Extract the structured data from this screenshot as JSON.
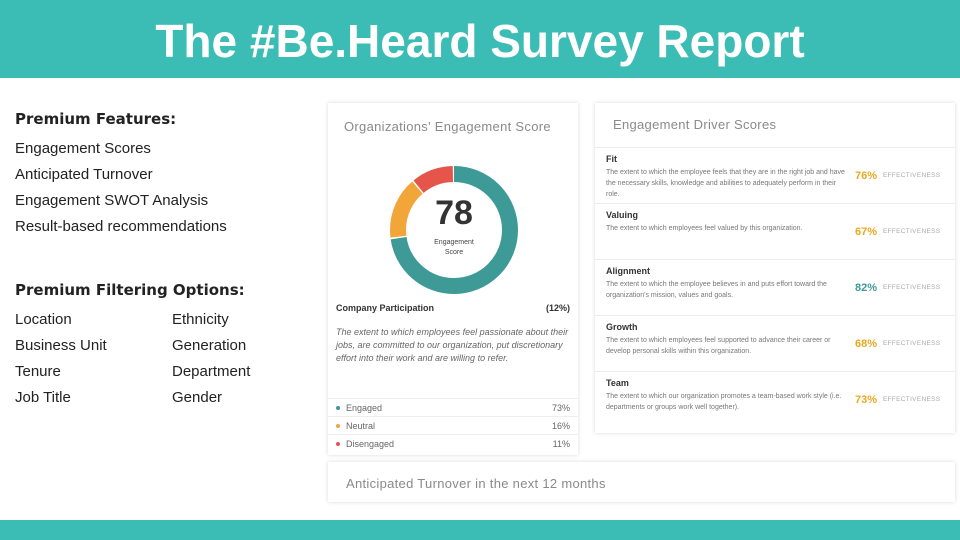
{
  "header": {
    "title": "The #Be.Heard Survey Report"
  },
  "left": {
    "premium_features_title": "Premium Features:",
    "features": [
      "Engagement Scores",
      "Anticipated Turnover",
      "Engagement SWOT Analysis",
      "Result-based recommendations"
    ],
    "filtering_title": "Premium Filtering Options:",
    "filters": [
      "Location",
      "Ethnicity",
      "Business Unit",
      "Generation",
      "Tenure",
      "Department",
      "Job Title",
      "Gender"
    ]
  },
  "engagement_panel": {
    "title": "Organizations' Engagement Score",
    "score": "78",
    "score_label_1": "Engagement",
    "score_label_2": "Score",
    "participation_label": "Company Participation",
    "participation_value": "(12%)",
    "description": "The extent to which employees feel passionate about their jobs, are committed to our organization, put discretionary effort into their work and are willing to refer.",
    "colors": {
      "engaged": "#3d9a96",
      "neutral": "#f2a63a",
      "disengaged": "#e6554a"
    },
    "stats": [
      {
        "name": "Engaged",
        "value": "73%"
      },
      {
        "name": "Neutral",
        "value": "16%"
      },
      {
        "name": "Disengaged",
        "value": "11%"
      }
    ]
  },
  "chart_data": {
    "type": "pie",
    "categories": [
      "Engaged",
      "Neutral",
      "Disengaged"
    ],
    "values": [
      73,
      16,
      11
    ],
    "title": "Organizations' Engagement Score"
  },
  "drivers_panel": {
    "title": "Engagement Driver Scores",
    "drivers": [
      {
        "name": "Fit",
        "desc": "The extent to which the employee feels that they are in the right job and have the necessary skills, knowledge and abilities to adequately perform in their role.",
        "pct": "76%",
        "color": "#e8a820",
        "eff": "EFFECTIVENESS"
      },
      {
        "name": "Valuing",
        "desc": "The extent to which employees feel valued by this organization.",
        "pct": "67%",
        "color": "#e8a820",
        "eff": "EFFECTIVENESS"
      },
      {
        "name": "Alignment",
        "desc": "The extent to which the employee believes in and puts effort toward the organization's mission, values and goals.",
        "pct": "82%",
        "color": "#3d9a96",
        "eff": "EFFECTIVENESS"
      },
      {
        "name": "Growth",
        "desc": "The extent to which employees feel supported to advance their career or develop personal skills within this organization.",
        "pct": "68%",
        "color": "#e8a820",
        "eff": "EFFECTIVENESS"
      },
      {
        "name": "Team",
        "desc": "The extent to which our organization promotes a team-based work style (i.e. departments or groups work well together).",
        "pct": "73%",
        "color": "#e8a820",
        "eff": "EFFECTIVENESS"
      }
    ]
  },
  "turnover_panel": {
    "title": "Anticipated Turnover in the next 12 months"
  }
}
